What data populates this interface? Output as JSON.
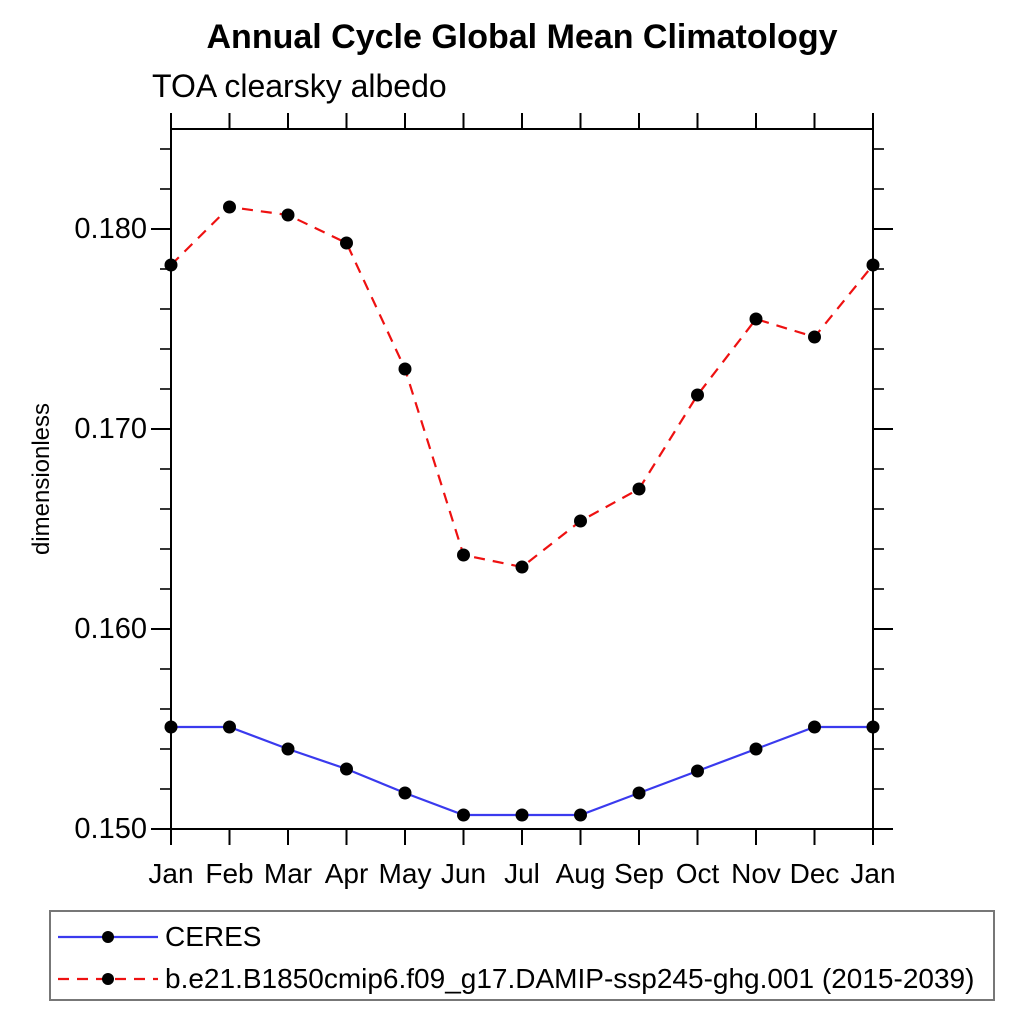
{
  "title": "Annual Cycle Global Mean Climatology",
  "subtitle": "TOA clearsky albedo",
  "chart_data": {
    "type": "line",
    "title": "Annual Cycle Global Mean Climatology",
    "subtitle": "TOA clearsky albedo",
    "xlabel": "",
    "ylabel": "dimensionless",
    "x_categories": [
      "Jan",
      "Feb",
      "Mar",
      "Apr",
      "May",
      "Jun",
      "Jul",
      "Aug",
      "Sep",
      "Oct",
      "Nov",
      "Dec",
      "Jan"
    ],
    "ylim": [
      0.15,
      0.185
    ],
    "yticks": [
      0.15,
      0.16,
      0.17,
      0.18
    ],
    "ytick_labels": [
      "0.150",
      "0.160",
      "0.170",
      "0.180"
    ],
    "ytick_minor_step": 0.002,
    "grid": false,
    "legend_position": "bottom-left-box",
    "series": [
      {
        "name": "CERES",
        "color": "#3a3aee",
        "line_style": "solid",
        "marker": "circle",
        "marker_color": "#000000",
        "values": [
          0.1551,
          0.1551,
          0.154,
          0.153,
          0.1518,
          0.1507,
          0.1507,
          0.1507,
          0.1518,
          0.1529,
          0.154,
          0.1551,
          0.1551
        ]
      },
      {
        "name": "b.e21.B1850cmip6.f09_g17.DAMIP-ssp245-ghg.001 (2015-2039)",
        "color": "#ee1111",
        "line_style": "dashed",
        "marker": "circle",
        "marker_color": "#000000",
        "values": [
          0.1782,
          0.1811,
          0.1807,
          0.1793,
          0.173,
          0.1637,
          0.1631,
          0.1654,
          0.167,
          0.1717,
          0.1755,
          0.1746,
          0.1782
        ]
      }
    ]
  },
  "colors": {
    "axis": "#000000",
    "text": "#000000",
    "background": "#ffffff",
    "legend_border": "#777777"
  }
}
